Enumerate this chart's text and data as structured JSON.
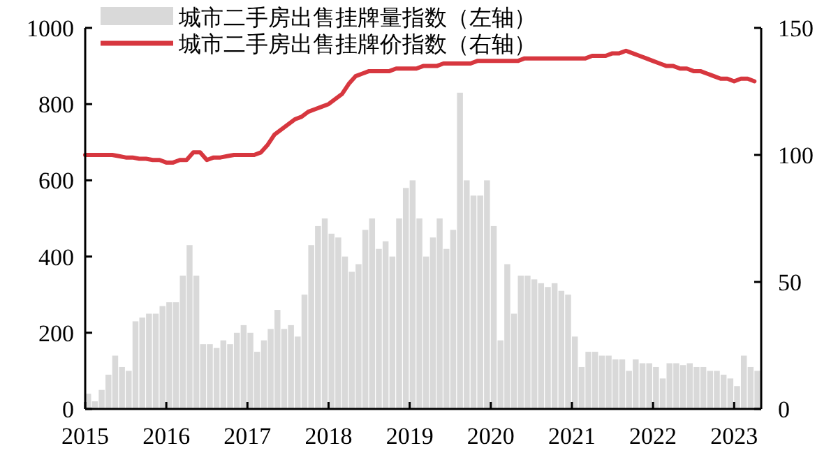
{
  "chart_data": {
    "type": "bar",
    "x": [
      "2015-01",
      "2015-02",
      "2015-03",
      "2015-04",
      "2015-05",
      "2015-06",
      "2015-07",
      "2015-08",
      "2015-09",
      "2015-10",
      "2015-11",
      "2015-12",
      "2016-01",
      "2016-02",
      "2016-03",
      "2016-04",
      "2016-05",
      "2016-06",
      "2016-07",
      "2016-08",
      "2016-09",
      "2016-10",
      "2016-11",
      "2016-12",
      "2017-01",
      "2017-02",
      "2017-03",
      "2017-04",
      "2017-05",
      "2017-06",
      "2017-07",
      "2017-08",
      "2017-09",
      "2017-10",
      "2017-11",
      "2017-12",
      "2018-01",
      "2018-02",
      "2018-03",
      "2018-04",
      "2018-05",
      "2018-06",
      "2018-07",
      "2018-08",
      "2018-09",
      "2018-10",
      "2018-11",
      "2018-12",
      "2019-01",
      "2019-02",
      "2019-03",
      "2019-04",
      "2019-05",
      "2019-06",
      "2019-07",
      "2019-08",
      "2019-09",
      "2019-10",
      "2019-11",
      "2019-12",
      "2020-01",
      "2020-02",
      "2020-03",
      "2020-04",
      "2020-05",
      "2020-06",
      "2020-07",
      "2020-08",
      "2020-09",
      "2020-10",
      "2020-11",
      "2020-12",
      "2021-01",
      "2021-02",
      "2021-03",
      "2021-04",
      "2021-05",
      "2021-06",
      "2021-07",
      "2021-08",
      "2021-09",
      "2021-10",
      "2021-11",
      "2021-12",
      "2022-01",
      "2022-02",
      "2022-03",
      "2022-04",
      "2022-05",
      "2022-06",
      "2022-07",
      "2022-08",
      "2022-09",
      "2022-10",
      "2022-11",
      "2022-12",
      "2023-01",
      "2023-02",
      "2023-03",
      "2023-04"
    ],
    "series": [
      {
        "name": "城市二手房出售挂牌量指数（左轴）",
        "color": "#d9d9d9",
        "values": [
          40,
          20,
          50,
          90,
          140,
          110,
          100,
          230,
          240,
          250,
          250,
          270,
          280,
          280,
          350,
          430,
          350,
          170,
          170,
          160,
          180,
          170,
          200,
          220,
          200,
          150,
          180,
          210,
          260,
          210,
          220,
          190,
          300,
          430,
          480,
          500,
          460,
          450,
          400,
          360,
          380,
          470,
          500,
          420,
          440,
          400,
          500,
          580,
          600,
          500,
          400,
          450,
          500,
          420,
          470,
          830,
          600,
          560,
          560,
          600,
          480,
          180,
          380,
          250,
          350,
          350,
          340,
          330,
          320,
          330,
          310,
          300,
          190,
          110,
          150,
          150,
          140,
          140,
          130,
          130,
          100,
          130,
          120,
          120,
          110,
          80,
          120,
          120,
          115,
          120,
          110,
          110,
          100,
          100,
          90,
          80,
          60,
          140,
          110,
          100
        ]
      },
      {
        "name": "城市二手房出售挂牌价指数（右轴）",
        "type": "line",
        "axis": "y2",
        "color": "#d7373f",
        "values": [
          100,
          100,
          100,
          100,
          100,
          99.5,
          99,
          99,
          98.5,
          98.5,
          98,
          98,
          97,
          97,
          98,
          98,
          101,
          101,
          98,
          99,
          99,
          99.5,
          100,
          100,
          100,
          100,
          101,
          104,
          108,
          110,
          112,
          114,
          115,
          117,
          118,
          119,
          120,
          122,
          124,
          128,
          131,
          132,
          133,
          133,
          133,
          133,
          134,
          134,
          134,
          134,
          135,
          135,
          135,
          136,
          136,
          136,
          136,
          136,
          137,
          137,
          137,
          137,
          137,
          137,
          137,
          138,
          138,
          138,
          138,
          138,
          138,
          138,
          138,
          138,
          138,
          139,
          139,
          139,
          140,
          140,
          141,
          140,
          139,
          138,
          137,
          136,
          135,
          135,
          134,
          134,
          133,
          133,
          132,
          131,
          130,
          130,
          129,
          130,
          130,
          129
        ]
      }
    ],
    "xlim": [
      "2015-01",
      "2023-05"
    ],
    "xticks": [
      "2015",
      "2016",
      "2017",
      "2018",
      "2019",
      "2020",
      "2021",
      "2022",
      "2023"
    ],
    "ylim": [
      0,
      1000
    ],
    "yticks": [
      0,
      200,
      400,
      600,
      800,
      1000
    ],
    "y2lim": [
      0,
      150
    ],
    "y2ticks": [
      0,
      50,
      100,
      150
    ],
    "legend": "top"
  }
}
